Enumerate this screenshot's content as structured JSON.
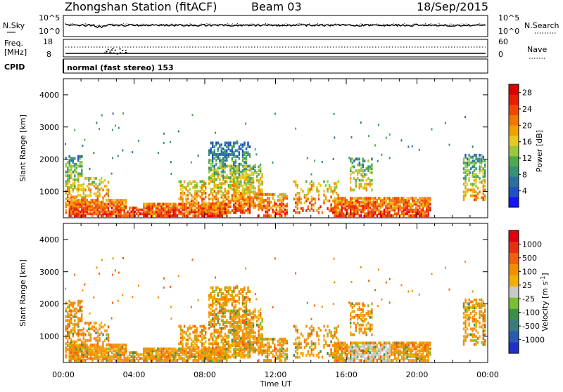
{
  "header": {
    "station": "Zhongshan Station (fitACF)",
    "beam": "Beam 03",
    "date": "18/Sep/2015"
  },
  "top_strip": {
    "left_label": "N.Sky",
    "right_label": "N.Search",
    "left_ticks": [
      "10^5",
      "10^0"
    ],
    "right_ticks": [
      "10^5",
      "10^0"
    ]
  },
  "freq_strip": {
    "left_label_1": "Freq.",
    "left_label_2": "[MHz]",
    "right_label": "Nave",
    "left_ticks": [
      "18",
      "8"
    ],
    "right_ticks": [
      "60",
      "0"
    ]
  },
  "cpid_strip": {
    "label": "CPID",
    "text": "normal (fast stereo) 153"
  },
  "chart_data": [
    {
      "type": "heatmap",
      "ylabel": "Slant Range [km]",
      "xlabel": "Time UT",
      "yticks": [
        "1000",
        "2000",
        "3000",
        "4000"
      ],
      "xticks": [
        "00:00",
        "04:00",
        "08:00",
        "12:00",
        "16:00",
        "20:00",
        "00:00"
      ],
      "ylim": [
        180,
        4500
      ],
      "xlim": [
        0,
        24
      ],
      "colorbar": {
        "label": "Power [dB]",
        "ticks": [
          "4",
          "8",
          "12",
          "16",
          "20",
          "24",
          "28"
        ],
        "range": [
          0,
          30
        ],
        "colors": [
          "#1414ff",
          "#1e50c8",
          "#2a6fa0",
          "#3a8f78",
          "#50a850",
          "#98c83c",
          "#e8c820",
          "#f0a000",
          "#f07800",
          "#f04800",
          "#e81e00",
          "#d80000"
        ]
      },
      "dominant_color": "#2a6fa0",
      "cells_note_hours": [
        0.0,
        24.0
      ]
    },
    {
      "type": "heatmap",
      "ylabel": "Slant Range [km]",
      "xlabel": "Time UT",
      "yticks": [
        "1000",
        "2000",
        "3000",
        "4000"
      ],
      "xticks": [
        "00:00",
        "04:00",
        "08:00",
        "12:00",
        "16:00",
        "20:00",
        "00:00"
      ],
      "ylim": [
        180,
        4500
      ],
      "xlim": [
        0,
        24
      ],
      "colorbar": {
        "label": "Velocity [m s-1]",
        "ticks": [
          "1000",
          "500",
          "100",
          "25",
          "-25",
          "-100",
          "-500",
          "-1000"
        ],
        "colors": [
          "#2030c8",
          "#2a5ab0",
          "#3a7a80",
          "#3a9048",
          "#78c030",
          "#c8c8c8",
          "#f0b000",
          "#f09000",
          "#f06010",
          "#e83010",
          "#e00010"
        ]
      },
      "dominant_color": "#f09010",
      "cells_note_hours": [
        0.0,
        24.0
      ]
    }
  ]
}
